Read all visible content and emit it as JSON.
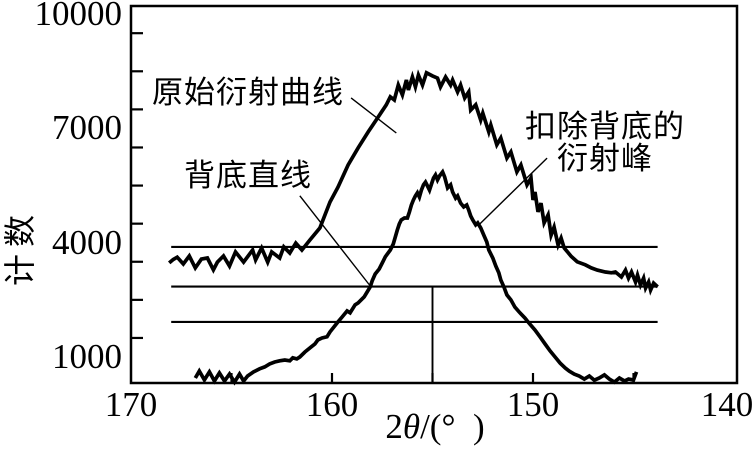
{
  "figure": {
    "background": "#ffffff",
    "ink": "#000000"
  },
  "chart_data": {
    "type": "line",
    "title": "",
    "ylabel": "计数",
    "xlabel_parts": {
      "prefix": "2",
      "theta": "θ",
      "suffix": "/(°  )"
    },
    "x_axis": {
      "labeled_ticks": [
        170,
        160,
        150,
        140
      ],
      "minor_ticks": [
        165,
        155,
        145
      ],
      "range": [
        170.0,
        139.9
      ],
      "direction": "decreasing"
    },
    "y_axis": {
      "labeled_ticks": [
        10000,
        7000,
        4000,
        1000
      ],
      "minor_ticks": [
        1500,
        2500,
        3500,
        4500,
        5500,
        6500,
        7500,
        8500,
        9500
      ],
      "range": [
        320,
        10210
      ]
    },
    "grid": "off",
    "series": [
      {
        "id": "original-curve",
        "label": "原始衍射曲线",
        "points": [
          [
            168.1,
            3470
          ],
          [
            167.9,
            3560
          ],
          [
            167.7,
            3620
          ],
          [
            167.4,
            3440
          ],
          [
            167.1,
            3650
          ],
          [
            166.8,
            3340
          ],
          [
            166.5,
            3570
          ],
          [
            166.2,
            3600
          ],
          [
            165.9,
            3290
          ],
          [
            165.7,
            3490
          ],
          [
            165.4,
            3650
          ],
          [
            165.1,
            3390
          ],
          [
            164.8,
            3760
          ],
          [
            164.4,
            3490
          ],
          [
            163.95,
            3810
          ],
          [
            163.8,
            3550
          ],
          [
            163.5,
            3860
          ],
          [
            163.2,
            3490
          ],
          [
            163.0,
            3760
          ],
          [
            162.6,
            3600
          ],
          [
            162.4,
            3890
          ],
          [
            162.1,
            3730
          ],
          [
            161.8,
            3990
          ],
          [
            161.5,
            3810
          ],
          [
            161.1,
            4070
          ],
          [
            160.6,
            4390
          ],
          [
            160.1,
            5070
          ],
          [
            159.7,
            5460
          ],
          [
            159.2,
            6040
          ],
          [
            158.7,
            6490
          ],
          [
            158.2,
            6910
          ],
          [
            157.7,
            7300
          ],
          [
            157.3,
            7620
          ],
          [
            157.1,
            7830
          ],
          [
            156.9,
            7750
          ],
          [
            156.7,
            8140
          ],
          [
            156.5,
            7880
          ],
          [
            156.3,
            8270
          ],
          [
            156.2,
            8010
          ],
          [
            156.0,
            8350
          ],
          [
            155.85,
            8090
          ],
          [
            155.7,
            8400
          ],
          [
            155.5,
            8140
          ],
          [
            155.3,
            8460
          ],
          [
            155.0,
            8380
          ],
          [
            154.75,
            8320
          ],
          [
            154.6,
            8090
          ],
          [
            154.35,
            8350
          ],
          [
            154.1,
            8140
          ],
          [
            154.0,
            8270
          ],
          [
            153.75,
            7960
          ],
          [
            153.6,
            8140
          ],
          [
            153.4,
            7800
          ],
          [
            153.2,
            7960
          ],
          [
            153.1,
            7480
          ],
          [
            152.85,
            7620
          ],
          [
            152.6,
            7220
          ],
          [
            152.5,
            7400
          ],
          [
            152.2,
            6910
          ],
          [
            152.1,
            7090
          ],
          [
            151.8,
            6570
          ],
          [
            151.6,
            6750
          ],
          [
            151.3,
            6220
          ],
          [
            151.1,
            6380
          ],
          [
            150.8,
            5860
          ],
          [
            150.6,
            6040
          ],
          [
            150.3,
            5520
          ],
          [
            150.1,
            5700
          ],
          [
            150.0,
            5120
          ],
          [
            149.9,
            5330
          ],
          [
            149.75,
            4810
          ],
          [
            149.6,
            5040
          ],
          [
            149.45,
            4520
          ],
          [
            149.25,
            4730
          ],
          [
            149.1,
            4200
          ],
          [
            148.95,
            4410
          ],
          [
            148.75,
            3940
          ],
          [
            148.6,
            4120
          ],
          [
            148.45,
            3860
          ],
          [
            148.3,
            3770
          ],
          [
            148.1,
            3640
          ],
          [
            147.8,
            3500
          ],
          [
            147.4,
            3420
          ],
          [
            147.1,
            3340
          ],
          [
            146.8,
            3280
          ],
          [
            146.4,
            3230
          ],
          [
            146.1,
            3210
          ],
          [
            145.9,
            3230
          ],
          [
            145.6,
            3100
          ],
          [
            145.4,
            3280
          ],
          [
            145.25,
            3070
          ],
          [
            145.1,
            3230
          ],
          [
            144.9,
            2970
          ],
          [
            144.8,
            3150
          ],
          [
            144.65,
            2890
          ],
          [
            144.5,
            3070
          ],
          [
            144.4,
            2810
          ],
          [
            144.25,
            2970
          ],
          [
            144.15,
            2760
          ],
          [
            144.0,
            2940
          ],
          [
            143.8,
            2840
          ]
        ]
      },
      {
        "id": "net-peak-curve",
        "label": "扣除背底的衍射峰",
        "points": [
          [
            166.8,
            450
          ],
          [
            166.6,
            630
          ],
          [
            166.35,
            400
          ],
          [
            166.1,
            610
          ],
          [
            165.85,
            370
          ],
          [
            165.6,
            580
          ],
          [
            165.35,
            370
          ],
          [
            165.1,
            550
          ],
          [
            164.85,
            340
          ],
          [
            164.6,
            550
          ],
          [
            164.4,
            370
          ],
          [
            164.2,
            500
          ],
          [
            163.9,
            610
          ],
          [
            163.6,
            690
          ],
          [
            163.35,
            740
          ],
          [
            163.1,
            820
          ],
          [
            162.85,
            870
          ],
          [
            162.6,
            900
          ],
          [
            162.35,
            920
          ],
          [
            162.1,
            900
          ],
          [
            161.95,
            980
          ],
          [
            161.75,
            950
          ],
          [
            161.6,
            1000
          ],
          [
            161.35,
            1130
          ],
          [
            161.1,
            1240
          ],
          [
            160.85,
            1340
          ],
          [
            160.7,
            1450
          ],
          [
            160.5,
            1500
          ],
          [
            160.25,
            1530
          ],
          [
            160.1,
            1660
          ],
          [
            159.9,
            1790
          ],
          [
            159.75,
            1890
          ],
          [
            159.5,
            2050
          ],
          [
            159.25,
            2210
          ],
          [
            159.1,
            2160
          ],
          [
            158.85,
            2370
          ],
          [
            158.7,
            2420
          ],
          [
            158.4,
            2580
          ],
          [
            158.25,
            2710
          ],
          [
            158.1,
            2840
          ],
          [
            158.0,
            3000
          ],
          [
            157.85,
            3180
          ],
          [
            157.65,
            3310
          ],
          [
            157.5,
            3470
          ],
          [
            157.35,
            3630
          ],
          [
            157.1,
            3810
          ],
          [
            156.95,
            3970
          ],
          [
            156.85,
            4150
          ],
          [
            156.75,
            4330
          ],
          [
            156.65,
            4490
          ],
          [
            156.55,
            4600
          ],
          [
            156.4,
            4650
          ],
          [
            156.25,
            4650
          ],
          [
            156.15,
            4810
          ],
          [
            156.05,
            4990
          ],
          [
            155.95,
            5120
          ],
          [
            155.85,
            5230
          ],
          [
            155.75,
            5310
          ],
          [
            155.65,
            5200
          ],
          [
            155.55,
            5380
          ],
          [
            155.45,
            5520
          ],
          [
            155.35,
            5590
          ],
          [
            155.25,
            5490
          ],
          [
            155.15,
            5380
          ],
          [
            155.05,
            5540
          ],
          [
            154.95,
            5700
          ],
          [
            154.85,
            5780
          ],
          [
            154.75,
            5650
          ],
          [
            154.65,
            5750
          ],
          [
            154.5,
            5860
          ],
          [
            154.4,
            5730
          ],
          [
            154.25,
            5440
          ],
          [
            154.1,
            5520
          ],
          [
            154.0,
            5330
          ],
          [
            153.85,
            5170
          ],
          [
            153.75,
            5230
          ],
          [
            153.6,
            5040
          ],
          [
            153.45,
            4940
          ],
          [
            153.3,
            4990
          ],
          [
            153.2,
            4860
          ],
          [
            153.1,
            4700
          ],
          [
            153.0,
            4600
          ],
          [
            152.85,
            4470
          ],
          [
            152.75,
            4520
          ],
          [
            152.6,
            4390
          ],
          [
            152.45,
            4200
          ],
          [
            152.3,
            4020
          ],
          [
            152.2,
            3810
          ],
          [
            152.0,
            3600
          ],
          [
            151.85,
            3390
          ],
          [
            151.7,
            3210
          ],
          [
            151.6,
            3020
          ],
          [
            151.45,
            2840
          ],
          [
            151.3,
            2630
          ],
          [
            151.1,
            2500
          ],
          [
            150.9,
            2310
          ],
          [
            150.65,
            2160
          ],
          [
            150.4,
            2020
          ],
          [
            150.2,
            1890
          ],
          [
            149.9,
            1710
          ],
          [
            149.65,
            1530
          ],
          [
            149.4,
            1340
          ],
          [
            149.15,
            1160
          ],
          [
            148.9,
            1000
          ],
          [
            148.65,
            840
          ],
          [
            148.4,
            710
          ],
          [
            148.2,
            630
          ],
          [
            147.95,
            550
          ],
          [
            147.7,
            500
          ],
          [
            147.45,
            420
          ],
          [
            147.2,
            500
          ],
          [
            146.95,
            390
          ],
          [
            146.7,
            450
          ],
          [
            146.45,
            530
          ],
          [
            146.2,
            420
          ],
          [
            145.95,
            340
          ],
          [
            145.7,
            450
          ],
          [
            145.45,
            370
          ],
          [
            145.25,
            420
          ],
          [
            145.0,
            400
          ],
          [
            144.85,
            610
          ]
        ]
      }
    ],
    "background_lines": [
      {
        "counts": 3890,
        "x_from": 168.0,
        "x_to": 143.8
      },
      {
        "counts": 2850,
        "x_from": 168.0,
        "x_to": 143.8
      },
      {
        "counts": 1920,
        "x_from": 168.0,
        "x_to": 143.8
      }
    ],
    "peak_center_line": {
      "x_deg": 155.0,
      "counts_from": 2850,
      "counts_to": 320
    },
    "annotations": [
      {
        "id": "original-curve",
        "text": "原始衍射曲线",
        "leader": [
          [
            159.05,
            7800
          ],
          [
            156.8,
            6880
          ]
        ]
      },
      {
        "id": "background-line",
        "text": "背底直线",
        "leader": [
          [
            161.6,
            5230
          ],
          [
            158.15,
            2900
          ]
        ]
      },
      {
        "id": "net-peak",
        "text_line1": "扣除背底的",
        "text_line2": "衍射峰",
        "leader": [
          [
            149.3,
            6220
          ],
          [
            152.75,
            4440
          ]
        ]
      }
    ]
  }
}
